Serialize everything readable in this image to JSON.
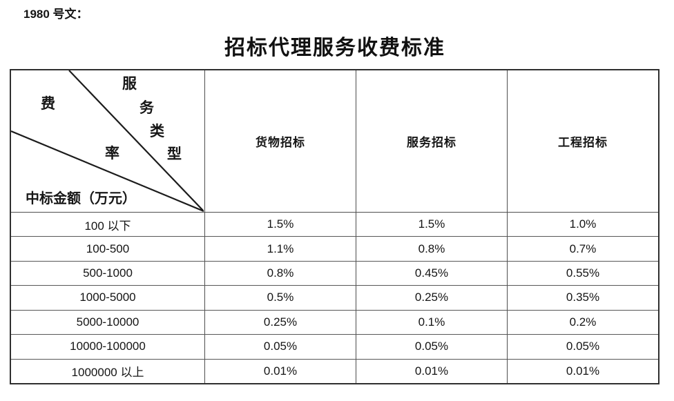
{
  "doc_label": "1980 号文：",
  "title": "招标代理服务收费标准",
  "table": {
    "corner": {
      "service_type_chars": [
        "服",
        "务",
        "类",
        "型"
      ],
      "rate_chars": [
        "费",
        "率"
      ],
      "amount_label": "中标金额（万元）"
    },
    "columns": [
      "货物招标",
      "服务招标",
      "工程招标"
    ],
    "rows": [
      {
        "range": "100 以下",
        "values": [
          "1.5%",
          "1.5%",
          "1.0%"
        ]
      },
      {
        "range": "100-500",
        "values": [
          "1.1%",
          "0.8%",
          "0.7%"
        ]
      },
      {
        "range": "500-1000",
        "values": [
          "0.8%",
          "0.45%",
          "0.55%"
        ]
      },
      {
        "range": "1000-5000",
        "values": [
          "0.5%",
          "0.25%",
          "0.35%"
        ]
      },
      {
        "range": "5000-10000",
        "values": [
          "0.25%",
          "0.1%",
          "0.2%"
        ]
      },
      {
        "range": "10000-100000",
        "values": [
          "0.05%",
          "0.05%",
          "0.05%"
        ]
      },
      {
        "range": "1000000 以上",
        "values": [
          "0.01%",
          "0.01%",
          "0.01%"
        ]
      }
    ]
  },
  "colors": {
    "text": "#141414",
    "border_outer": "#2e2e2e",
    "border_inner": "#4d4d4d",
    "background": "#ffffff"
  }
}
